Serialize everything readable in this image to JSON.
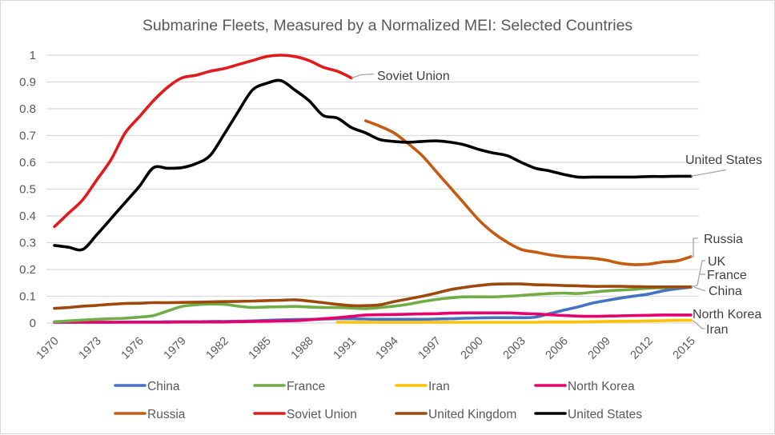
{
  "chart_data": {
    "type": "line",
    "title": "Submarine Fleets, Measured by a Normalized MEI: Selected Countries",
    "xlabel": "",
    "ylabel": "",
    "ylim": [
      0,
      1
    ],
    "xlim": [
      1970,
      2015
    ],
    "grid": true,
    "legend_position": "bottom",
    "y_ticks": [
      "0",
      "0.1",
      "0.2",
      "0.3",
      "0.4",
      "0.5",
      "0.6",
      "0.7",
      "0.8",
      "0.9",
      "1"
    ],
    "y_tick_values": [
      0,
      0.1,
      0.2,
      0.3,
      0.4,
      0.5,
      0.6,
      0.7,
      0.8,
      0.9,
      1
    ],
    "x_ticks": [
      "1970",
      "1973",
      "1976",
      "1979",
      "1982",
      "1985",
      "1988",
      "1991",
      "1994",
      "1997",
      "2000",
      "2003",
      "2006",
      "2009",
      "2012",
      "2015"
    ],
    "x_tick_values": [
      1970,
      1973,
      1976,
      1979,
      1982,
      1985,
      1988,
      1991,
      1994,
      1997,
      2000,
      2003,
      2006,
      2009,
      2012,
      2015
    ],
    "series": [
      {
        "name": "China",
        "color": "#4472c4",
        "start_year": 1970,
        "values": [
          0.003,
          0.003,
          0.003,
          0.003,
          0.003,
          0.004,
          0.004,
          0.004,
          0.005,
          0.005,
          0.005,
          0.006,
          0.006,
          0.007,
          0.008,
          0.01,
          0.012,
          0.013,
          0.014,
          0.015,
          0.016,
          0.016,
          0.015,
          0.014,
          0.014,
          0.014,
          0.014,
          0.015,
          0.016,
          0.018,
          0.019,
          0.02,
          0.02,
          0.02,
          0.022,
          0.035,
          0.048,
          0.06,
          0.074,
          0.084,
          0.093,
          0.101,
          0.108,
          0.12,
          0.128,
          0.134
        ]
      },
      {
        "name": "France",
        "color": "#70ad47",
        "start_year": 1970,
        "values": [
          0.005,
          0.008,
          0.011,
          0.014,
          0.016,
          0.018,
          0.022,
          0.028,
          0.045,
          0.062,
          0.068,
          0.071,
          0.07,
          0.063,
          0.058,
          0.06,
          0.061,
          0.062,
          0.06,
          0.058,
          0.058,
          0.056,
          0.054,
          0.058,
          0.063,
          0.07,
          0.08,
          0.088,
          0.094,
          0.098,
          0.098,
          0.098,
          0.1,
          0.103,
          0.107,
          0.11,
          0.112,
          0.11,
          0.115,
          0.12,
          0.123,
          0.126,
          0.13,
          0.132,
          0.134,
          0.135
        ]
      },
      {
        "name": "Iran",
        "color": "#ffc000",
        "start_year": 1990,
        "values": [
          0.003,
          0.003,
          0.003,
          0.003,
          0.003,
          0.003,
          0.003,
          0.003,
          0.003,
          0.003,
          0.003,
          0.003,
          0.003,
          0.003,
          0.003,
          0.004,
          0.004,
          0.004,
          0.005,
          0.006,
          0.007,
          0.007,
          0.008,
          0.009,
          0.01,
          0.01
        ]
      },
      {
        "name": "North Korea",
        "color": "#e6006e",
        "start_year": 1970,
        "values": [
          0.003,
          0.003,
          0.003,
          0.003,
          0.003,
          0.003,
          0.003,
          0.003,
          0.003,
          0.004,
          0.004,
          0.004,
          0.004,
          0.005,
          0.006,
          0.007,
          0.008,
          0.009,
          0.012,
          0.016,
          0.02,
          0.025,
          0.03,
          0.031,
          0.032,
          0.033,
          0.034,
          0.035,
          0.037,
          0.038,
          0.038,
          0.038,
          0.038,
          0.036,
          0.034,
          0.031,
          0.028,
          0.026,
          0.025,
          0.026,
          0.027,
          0.028,
          0.029,
          0.03,
          0.03,
          0.03
        ]
      },
      {
        "name": "Russia",
        "color": "#c55a11",
        "start_year": 1992,
        "values": [
          0.755,
          0.735,
          0.71,
          0.67,
          0.625,
          0.565,
          0.505,
          0.445,
          0.385,
          0.338,
          0.302,
          0.275,
          0.265,
          0.255,
          0.248,
          0.245,
          0.242,
          0.235,
          0.223,
          0.218,
          0.22,
          0.228,
          0.232,
          0.248
        ]
      },
      {
        "name": "Soviet Union",
        "color": "#e31a1c",
        "start_year": 1970,
        "values": [
          0.36,
          0.41,
          0.46,
          0.535,
          0.61,
          0.71,
          0.77,
          0.83,
          0.88,
          0.915,
          0.925,
          0.94,
          0.95,
          0.965,
          0.98,
          0.995,
          1.0,
          0.995,
          0.98,
          0.955,
          0.94,
          0.915
        ]
      },
      {
        "name": "United Kingdom",
        "color": "#9e480e",
        "start_year": 1970,
        "values": [
          0.055,
          0.058,
          0.063,
          0.066,
          0.07,
          0.073,
          0.074,
          0.076,
          0.076,
          0.077,
          0.078,
          0.079,
          0.08,
          0.081,
          0.082,
          0.084,
          0.085,
          0.087,
          0.082,
          0.076,
          0.07,
          0.065,
          0.065,
          0.068,
          0.08,
          0.09,
          0.1,
          0.112,
          0.125,
          0.133,
          0.14,
          0.145,
          0.146,
          0.146,
          0.143,
          0.142,
          0.14,
          0.139,
          0.137,
          0.137,
          0.137,
          0.136,
          0.135,
          0.135,
          0.135,
          0.135
        ]
      },
      {
        "name": "United States",
        "color": "#000000",
        "start_year": 1970,
        "values": [
          0.29,
          0.283,
          0.275,
          0.33,
          0.39,
          0.45,
          0.51,
          0.58,
          0.578,
          0.58,
          0.595,
          0.625,
          0.705,
          0.79,
          0.87,
          0.895,
          0.905,
          0.87,
          0.83,
          0.775,
          0.765,
          0.73,
          0.71,
          0.685,
          0.678,
          0.675,
          0.678,
          0.68,
          0.675,
          0.665,
          0.648,
          0.635,
          0.625,
          0.6,
          0.578,
          0.568,
          0.555,
          0.545,
          0.545,
          0.545,
          0.545,
          0.545,
          0.547,
          0.547,
          0.548,
          0.548
        ]
      }
    ],
    "annotations": [
      {
        "text": "Soviet Union",
        "series": "Soviet Union"
      },
      {
        "text": "United States",
        "series": "United States"
      },
      {
        "text": "Russia",
        "series": "Russia"
      },
      {
        "text": "UK",
        "series": "United Kingdom"
      },
      {
        "text": "France",
        "series": "France"
      },
      {
        "text": "China",
        "series": "China"
      },
      {
        "text": "North Korea",
        "series": "North Korea"
      },
      {
        "text": "Iran",
        "series": "Iran"
      }
    ]
  }
}
